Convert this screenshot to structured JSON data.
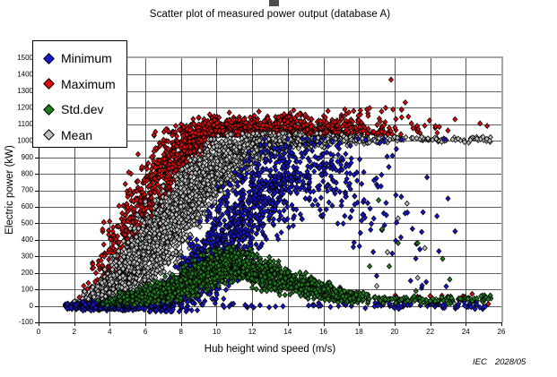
{
  "title_note": "",
  "footer": {
    "left": "IEC",
    "right": "2028/05"
  },
  "legend": {
    "items": [
      {
        "label": "Minimum",
        "color": "#1414d2"
      },
      {
        "label": "Maximum",
        "color": "#dd0808"
      },
      {
        "label": "Std.dev",
        "color": "#1e7d1e"
      },
      {
        "label": "Mean",
        "color": "#c0c0c0"
      }
    ]
  },
  "chart_data": {
    "type": "scatter",
    "title": "Scatter plot of measured power output (database A)",
    "xlabel": "Hub height wind speed (m/s)",
    "ylabel": "Electric power (kW)",
    "xlim": [
      0,
      26
    ],
    "ylim": [
      -100,
      1500
    ],
    "x_tick_step": 2,
    "y_tick_step": 100,
    "x_ticks": [
      "0",
      "2",
      "4",
      "6",
      "8",
      "10",
      "12",
      "14",
      "16",
      "18",
      "20",
      "22",
      "24",
      "26"
    ],
    "y_ticks": [
      "1500",
      "1400",
      "1300",
      "1200",
      "1100",
      "1000",
      "900",
      "800",
      "700",
      "600",
      "500",
      "400",
      "300",
      "200",
      "100",
      "0",
      "-100"
    ],
    "grid": true,
    "grid_color": "#2a2a2a",
    "border_color": "#9a9a9a",
    "axis_color": "#000000",
    "marker_shape": "diamond",
    "marker_outline": "#000000",
    "legend_position": "upper-left-overlay",
    "series_note": "clusters = [windSpeed, count, centerKW, stdKW, (optional clampLo, clampHi)]; bands = [x0, x1, count, centerKW, jitterKW]; outliers = explicit [x, kW] points; series listed in draw order (Maximum, Mean, Minimum, Std.dev), legend order is Minimum, Maximum, Std.dev, Mean",
    "series": [
      {
        "name": "Maximum",
        "color": "#dd0808",
        "ylim": [
          -15,
          1380
        ],
        "clusters": [
          [
            2.6,
            10,
            25,
            30,
            -10,
            90
          ],
          [
            3,
            22,
            80,
            55,
            -5,
            200
          ],
          [
            3.5,
            30,
            160,
            90
          ],
          [
            4,
            45,
            250,
            120
          ],
          [
            4.5,
            52,
            340,
            130
          ],
          [
            5,
            60,
            430,
            140
          ],
          [
            5.5,
            65,
            520,
            140
          ],
          [
            6,
            70,
            610,
            140
          ],
          [
            6.5,
            72,
            700,
            130
          ],
          [
            7,
            75,
            790,
            120
          ],
          [
            7.5,
            78,
            870,
            105
          ],
          [
            8,
            80,
            935,
            90,
            640,
            1090
          ],
          [
            8.5,
            82,
            985,
            70,
            740,
            1100
          ],
          [
            9,
            82,
            1025,
            55,
            880,
            1140
          ],
          [
            9.5,
            82,
            1048,
            45,
            930,
            1150
          ],
          [
            10,
            120,
            1062,
            42,
            1036,
            1170
          ],
          [
            11,
            110,
            1068,
            42,
            1036,
            1175
          ],
          [
            12,
            100,
            1068,
            45,
            1036,
            1180
          ],
          [
            13,
            90,
            1070,
            45,
            1036,
            1180
          ],
          [
            14,
            80,
            1072,
            48,
            1036,
            1185
          ],
          [
            15,
            70,
            1072,
            48,
            1036,
            1185
          ],
          [
            16,
            60,
            1075,
            48,
            1036,
            1190
          ],
          [
            17,
            48,
            1078,
            50,
            1036,
            1190
          ],
          [
            18,
            34,
            1080,
            52,
            1036,
            1195
          ],
          [
            19,
            20,
            1090,
            55,
            1038,
            1200
          ],
          [
            20,
            12,
            1100,
            60,
            1040,
            1210
          ],
          [
            21,
            8,
            1090,
            45,
            1040,
            1180
          ],
          [
            22,
            5,
            1085,
            35,
            1040,
            1150
          ]
        ],
        "bands": [
          [
            8.8,
            20,
            130,
            1047,
            7
          ],
          [
            19,
            25.5,
            14,
            42,
            16
          ]
        ],
        "outliers": [
          [
            19.8,
            1370
          ],
          [
            23.4,
            1130
          ],
          [
            24.8,
            1105
          ],
          [
            23.0,
            1062
          ],
          [
            25.2,
            1090
          ],
          [
            22.4,
            1048
          ],
          [
            20.6,
            1232
          ],
          [
            18.6,
            1198
          ]
        ]
      },
      {
        "name": "Mean",
        "color": "#c0c0c0",
        "ylim": [
          -25,
          1045
        ],
        "clusters": [
          [
            2,
            45,
            2,
            10,
            -22,
            30
          ],
          [
            2.5,
            55,
            8,
            14,
            -22,
            60
          ],
          [
            3,
            85,
            30,
            26
          ],
          [
            3.5,
            95,
            60,
            40
          ],
          [
            4,
            110,
            100,
            55
          ],
          [
            4.5,
            120,
            150,
            70
          ],
          [
            5,
            130,
            205,
            85
          ],
          [
            5.5,
            135,
            260,
            95
          ],
          [
            6,
            140,
            320,
            105
          ],
          [
            6.5,
            140,
            385,
            112
          ],
          [
            7,
            140,
            450,
            115
          ],
          [
            7.5,
            140,
            515,
            115
          ],
          [
            8,
            138,
            580,
            115
          ],
          [
            8.5,
            135,
            645,
            112
          ],
          [
            9,
            130,
            710,
            105
          ],
          [
            9.5,
            125,
            768,
            95
          ],
          [
            10,
            118,
            822,
            85
          ],
          [
            10.5,
            112,
            865,
            75
          ],
          [
            11,
            105,
            900,
            65
          ],
          [
            11.5,
            98,
            928,
            55
          ],
          [
            12,
            90,
            950,
            48
          ],
          [
            12.5,
            82,
            968,
            40
          ],
          [
            13,
            75,
            982,
            34
          ],
          [
            13.5,
            68,
            990,
            28
          ],
          [
            14,
            62,
            997,
            25
          ],
          [
            15,
            52,
            1002,
            22
          ],
          [
            16,
            44,
            1005,
            20
          ],
          [
            17,
            36,
            1006,
            18
          ],
          [
            18,
            28,
            1006,
            16
          ]
        ],
        "bands": [
          [
            12,
            25.5,
            150,
            1006,
            9
          ],
          [
            18.8,
            25.5,
            16,
            28,
            13
          ]
        ],
        "outliers": [
          [
            19.3,
            460
          ],
          [
            19.6,
            325
          ],
          [
            21.3,
            170
          ],
          [
            20.2,
            530
          ],
          [
            19.0,
            120
          ],
          [
            21.7,
            350
          ],
          [
            20.7,
            620
          ]
        ]
      },
      {
        "name": "Minimum",
        "color": "#1414d2",
        "ylim": [
          -34,
          1012
        ],
        "clusters": [
          [
            2,
            28,
            -6,
            9
          ],
          [
            2.5,
            40,
            -5,
            11
          ],
          [
            3,
            65,
            -2,
            12
          ],
          [
            3.5,
            75,
            0,
            13
          ],
          [
            4,
            85,
            3,
            14
          ],
          [
            4.5,
            90,
            6,
            15
          ],
          [
            5,
            95,
            9,
            16
          ],
          [
            5.5,
            95,
            13,
            18
          ],
          [
            6,
            95,
            18,
            22
          ],
          [
            6.5,
            95,
            28,
            28
          ],
          [
            7,
            95,
            45,
            36
          ],
          [
            7.5,
            95,
            72,
            50
          ],
          [
            8,
            95,
            108,
            65
          ],
          [
            8.5,
            92,
            160,
            85
          ],
          [
            9,
            90,
            220,
            105
          ],
          [
            9.5,
            88,
            280,
            120
          ],
          [
            10,
            85,
            340,
            135
          ],
          [
            10.5,
            82,
            410,
            142
          ],
          [
            11,
            80,
            478,
            148
          ],
          [
            11.5,
            78,
            545,
            150
          ],
          [
            12,
            75,
            610,
            148
          ],
          [
            12.5,
            72,
            662,
            142
          ],
          [
            13,
            70,
            708,
            138
          ],
          [
            13.5,
            67,
            735,
            132
          ],
          [
            14,
            64,
            758,
            128
          ],
          [
            15,
            58,
            790,
            120
          ],
          [
            16,
            52,
            800,
            118
          ],
          [
            17,
            44,
            780,
            128
          ],
          [
            18,
            32,
            700,
            175
          ],
          [
            19,
            18,
            600,
            215
          ],
          [
            20,
            12,
            550,
            225
          ],
          [
            21,
            9,
            500,
            215
          ],
          [
            22,
            6,
            450,
            195
          ]
        ],
        "bands": [
          [
            10,
            17.5,
            26,
            2,
            9
          ],
          [
            17.5,
            25.5,
            62,
            2,
            11
          ]
        ],
        "outliers": [
          [
            22.8,
            1010
          ],
          [
            20.1,
            950
          ],
          [
            19.4,
            995
          ],
          [
            23.0,
            650
          ],
          [
            23.4,
            452
          ],
          [
            20.9,
            152
          ],
          [
            22.9,
            118
          ],
          [
            24.6,
            8
          ],
          [
            25.1,
            -4
          ]
        ]
      },
      {
        "name": "Std.dev",
        "color": "#1e7d1e",
        "ylim": [
          4,
          700
        ],
        "clusters": [
          [
            3.8,
            22,
            22,
            10
          ],
          [
            4.5,
            40,
            32,
            14
          ],
          [
            5,
            50,
            42,
            18
          ],
          [
            5.5,
            58,
            52,
            21
          ],
          [
            6,
            64,
            62,
            24
          ],
          [
            6.5,
            70,
            75,
            28
          ],
          [
            7,
            75,
            90,
            31
          ],
          [
            7.5,
            80,
            110,
            35
          ],
          [
            8,
            85,
            130,
            38
          ],
          [
            8.5,
            88,
            155,
            42
          ],
          [
            9,
            90,
            180,
            44
          ],
          [
            9.5,
            92,
            205,
            46
          ],
          [
            10,
            94,
            228,
            48
          ],
          [
            10.5,
            92,
            245,
            49
          ],
          [
            11,
            90,
            252,
            49
          ],
          [
            11.5,
            88,
            240,
            48
          ],
          [
            12,
            84,
            218,
            46
          ],
          [
            12.5,
            80,
            198,
            44
          ],
          [
            13,
            76,
            180,
            41
          ],
          [
            13.5,
            70,
            162,
            39
          ],
          [
            14,
            65,
            145,
            36
          ],
          [
            14.5,
            60,
            130,
            33
          ],
          [
            15,
            55,
            116,
            30
          ],
          [
            15.5,
            50,
            103,
            27
          ],
          [
            16,
            46,
            90,
            25
          ],
          [
            16.5,
            43,
            76,
            22
          ],
          [
            17,
            40,
            64,
            19
          ],
          [
            17.5,
            38,
            55,
            17
          ],
          [
            18,
            36,
            48,
            15
          ]
        ],
        "bands": [
          [
            18.5,
            25.5,
            105,
            38,
            13
          ]
        ],
        "outliers": [
          [
            19.3,
            465
          ],
          [
            20.2,
            380
          ],
          [
            21.3,
            380
          ],
          [
            22.7,
            285
          ],
          [
            19.7,
            240
          ],
          [
            18.6,
            240
          ],
          [
            21.2,
            90
          ],
          [
            23.1,
            160
          ],
          [
            19.1,
            640
          ]
        ]
      }
    ]
  }
}
